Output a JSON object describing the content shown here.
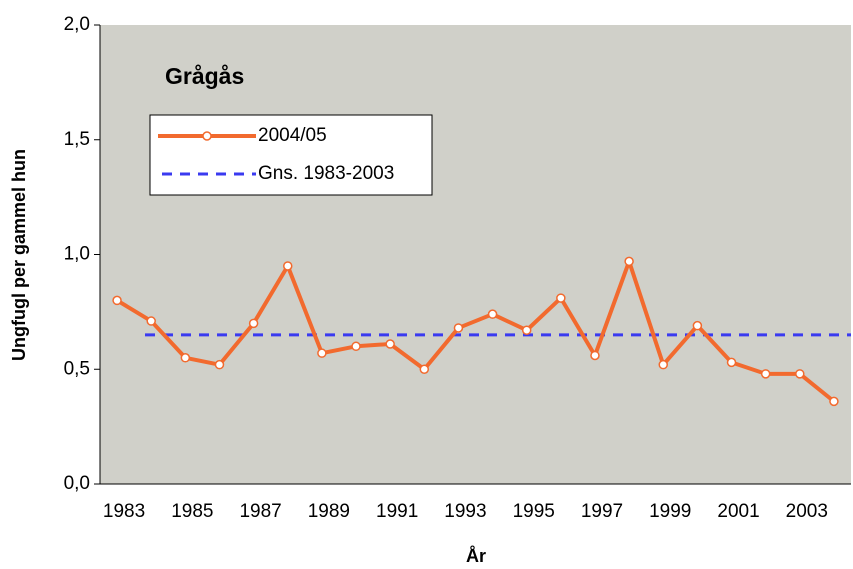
{
  "chart_data": {
    "type": "line",
    "title": "Grågås",
    "x_label": "År",
    "y_label": "Ungfugl per gammel hun",
    "categories": [
      "1983",
      null,
      "1985",
      null,
      "1987",
      null,
      "1989",
      null,
      "1991",
      null,
      "1993",
      null,
      "1995",
      null,
      "1997",
      null,
      "1999",
      null,
      "2001",
      null,
      "2003",
      null
    ],
    "series": [
      {
        "name": "2004/05",
        "color": "#f26a2e",
        "values": [
          0.8,
          0.71,
          0.55,
          0.52,
          0.7,
          0.95,
          0.57,
          0.6,
          0.61,
          0.5,
          0.68,
          0.74,
          0.67,
          0.81,
          0.56,
          0.97,
          0.52,
          0.69,
          0.53,
          0.48,
          0.48,
          0.36
        ]
      }
    ],
    "reference_lines": [
      {
        "name": "Gns. 1983-2003",
        "value": 0.65,
        "color": "#3a3af0",
        "style": "dashed"
      }
    ],
    "ylim": [
      0,
      2
    ],
    "yticks": [
      {
        "value": 0,
        "label": "0,0"
      },
      {
        "value": 0.5,
        "label": "0,5"
      },
      {
        "value": 1,
        "label": "1,0"
      },
      {
        "value": 1.5,
        "label": "1,5"
      },
      {
        "value": 2,
        "label": "2,0"
      }
    ],
    "grid": false,
    "legend": "upper left"
  }
}
